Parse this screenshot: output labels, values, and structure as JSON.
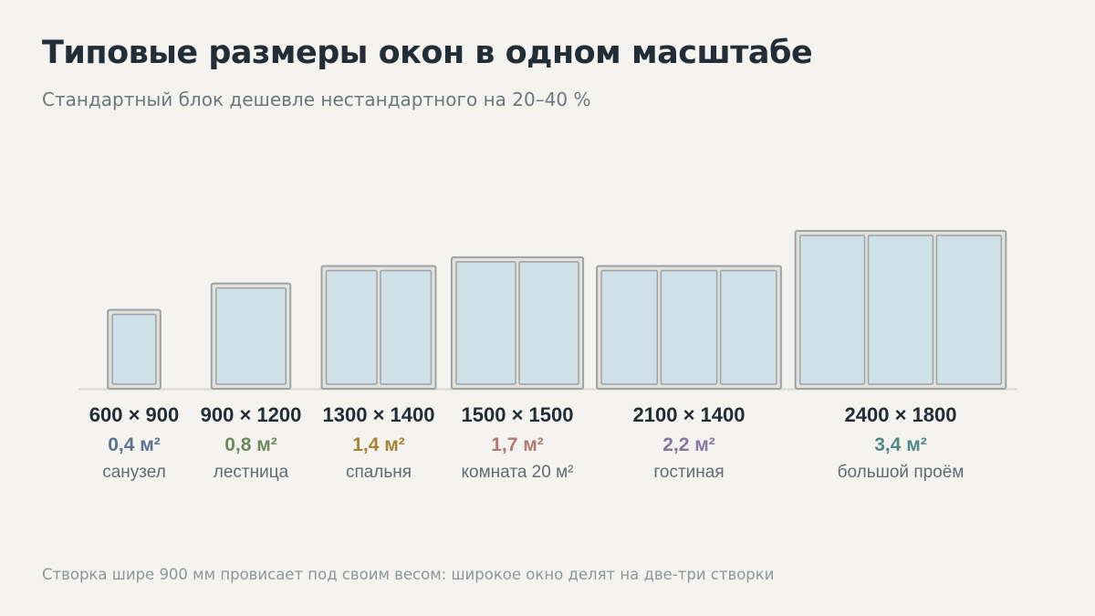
{
  "title": "Типовые размеры окон в одном масштабе",
  "subtitle": "Стандартный блок дешевле нестандартного на 20–40 %",
  "footnote": "Створка шире 900 мм провисает под своим весом: широкое окно делят на две-три створки",
  "colors": {
    "background": "#f5f3ef",
    "frame": "#e4e0da",
    "frame_stroke": "#9aa3a8",
    "glass": "#d0e0e7",
    "baseline": "#dcd4cc"
  },
  "windows": [
    {
      "width_mm": 600,
      "height_mm": 900,
      "sashes": 1,
      "size": "600 × 900",
      "area": "0,4 м²",
      "area_color": "#5a7390",
      "room": "санузел"
    },
    {
      "width_mm": 900,
      "height_mm": 1200,
      "sashes": 1,
      "size": "900 × 1200",
      "area": "0,8 м²",
      "area_color": "#6b8a5c",
      "room": "лестница"
    },
    {
      "width_mm": 1300,
      "height_mm": 1400,
      "sashes": 2,
      "size": "1300 × 1400",
      "area": "1,4 м²",
      "area_color": "#a58236",
      "room": "спальня"
    },
    {
      "width_mm": 1500,
      "height_mm": 1500,
      "sashes": 2,
      "size": "1500 × 1500",
      "area": "1,7 м²",
      "area_color": "#b27a72",
      "room": "комната 20 м²"
    },
    {
      "width_mm": 2100,
      "height_mm": 1400,
      "sashes": 3,
      "size": "2100 × 1400",
      "area": "2,2 м²",
      "area_color": "#8a75a3",
      "room": "гостиная"
    },
    {
      "width_mm": 2400,
      "height_mm": 1800,
      "sashes": 3,
      "size": "2400 × 1800",
      "area": "3,4 м²",
      "area_color": "#4e8a84",
      "room": "большой проём"
    }
  ]
}
